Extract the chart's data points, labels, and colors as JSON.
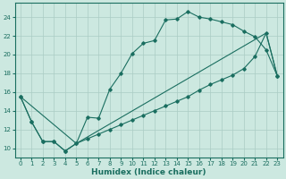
{
  "title": "",
  "xlabel": "Humidex (Indice chaleur)",
  "ylabel": "",
  "bg_color": "#cce8e0",
  "grid_color": "#aaccc4",
  "line_color": "#1a6e60",
  "xlim": [
    -0.5,
    23.5
  ],
  "ylim": [
    9.0,
    25.5
  ],
  "xticks": [
    0,
    1,
    2,
    3,
    4,
    5,
    6,
    7,
    8,
    9,
    10,
    11,
    12,
    13,
    14,
    15,
    16,
    17,
    18,
    19,
    20,
    21,
    22,
    23
  ],
  "yticks": [
    10,
    12,
    14,
    16,
    18,
    20,
    22,
    24
  ],
  "line1_x": [
    0,
    1,
    2,
    3,
    4,
    5,
    6,
    7,
    8,
    9,
    10,
    11,
    12,
    13,
    14,
    15,
    16,
    17,
    18,
    19,
    20,
    21,
    22,
    23
  ],
  "line1_y": [
    15.5,
    12.8,
    10.7,
    10.7,
    9.7,
    10.5,
    13.3,
    13.2,
    16.3,
    18.0,
    20.1,
    21.2,
    21.5,
    23.7,
    23.8,
    24.6,
    24.0,
    23.8,
    23.5,
    23.2,
    22.5,
    21.9,
    20.5,
    17.7
  ],
  "line2_x": [
    0,
    1,
    2,
    3,
    4,
    5,
    6,
    7,
    8,
    9,
    10,
    11,
    12,
    13,
    14,
    15,
    16,
    17,
    18,
    19,
    20,
    21,
    22,
    23
  ],
  "line2_y": [
    15.5,
    12.8,
    10.7,
    10.7,
    9.7,
    10.5,
    11.0,
    11.5,
    12.0,
    12.5,
    13.0,
    13.5,
    14.0,
    14.5,
    15.0,
    15.5,
    16.2,
    16.8,
    17.3,
    17.8,
    18.5,
    19.8,
    22.3,
    17.7
  ],
  "line3_x": [
    0,
    5,
    22,
    23
  ],
  "line3_y": [
    15.5,
    10.5,
    22.3,
    17.7
  ]
}
